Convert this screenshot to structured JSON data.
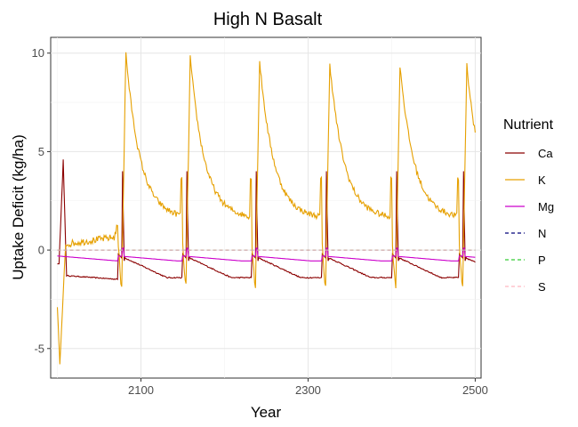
{
  "chart_data": {
    "type": "line",
    "title": "High N Basalt",
    "xlabel": "Year",
    "ylabel": "Uptake Deficit (kg/ha)",
    "xlim": [
      1992,
      2507
    ],
    "ylim": [
      -6.5,
      10.8
    ],
    "xticks": [
      2100,
      2300,
      2500
    ],
    "yticks": [
      -5,
      0,
      5,
      10
    ],
    "grid": true,
    "legend_title": "Nutrient",
    "legend_position": "right",
    "series": [
      {
        "name": "Ca",
        "color": "#8B0000",
        "dash": "solid"
      },
      {
        "name": "K",
        "color": "#E6A000",
        "dash": "solid"
      },
      {
        "name": "Mg",
        "color": "#CC00CC",
        "dash": "solid"
      },
      {
        "name": "N",
        "color": "#00007A",
        "dash": "dashed"
      },
      {
        "name": "P",
        "color": "#33CC33",
        "dash": "dashed"
      },
      {
        "name": "S",
        "color": "#FFB6C1",
        "dash": "dashed"
      }
    ]
  }
}
